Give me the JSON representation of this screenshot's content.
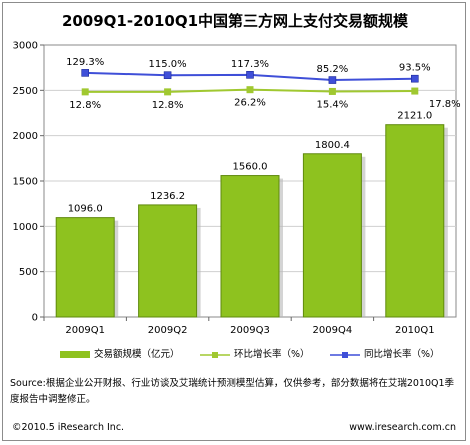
{
  "colors": {
    "bar": "#8ec21f",
    "bar_dark": "#5f8a0c",
    "yoy_line": "#a0c830",
    "qoq_line": "#3f4fd8"
  },
  "chart_data": {
    "type": "bar",
    "title": "2009Q1-2010Q1中国第三方网上支付交易额规模",
    "categories": [
      "2009Q1",
      "2009Q2",
      "2009Q3",
      "2009Q4",
      "2010Q1"
    ],
    "ylim": [
      0,
      3000
    ],
    "yticks": [
      "0",
      "500",
      "1000",
      "1500",
      "2000",
      "2500",
      "3000"
    ],
    "grid": true,
    "legend_position": "bottom",
    "series": [
      {
        "name": "交易额规模（亿元）",
        "type": "bar",
        "values": [
          1096.0,
          1236.2,
          1560.0,
          1800.4,
          2121.0
        ],
        "labels": [
          "1096.0",
          "1236.2",
          "1560.0",
          "1800.4",
          "2121.0"
        ]
      },
      {
        "name": "环比增长率（%）",
        "type": "line",
        "values": [
          12.8,
          12.8,
          26.2,
          15.4,
          17.8
        ],
        "labels": [
          "12.8%",
          "12.8%",
          "26.2%",
          "15.4%",
          "17.8%"
        ]
      },
      {
        "name": "同比增长率（%）",
        "type": "line",
        "values": [
          129.3,
          115.0,
          117.3,
          85.2,
          93.5
        ],
        "labels": [
          "129.3%",
          "115.0%",
          "117.3%",
          "85.2%",
          "93.5%"
        ]
      }
    ]
  },
  "source_text": "Source:根据企业公开财报、行业访谈及艾瑞统计预测模型估算，仅供参考，部分数据将在艾瑞2010Q1季度报告中调整修正。",
  "footer": {
    "copyright": "©2010.5 iResearch Inc.",
    "website": "www.iresearch.com.cn"
  }
}
